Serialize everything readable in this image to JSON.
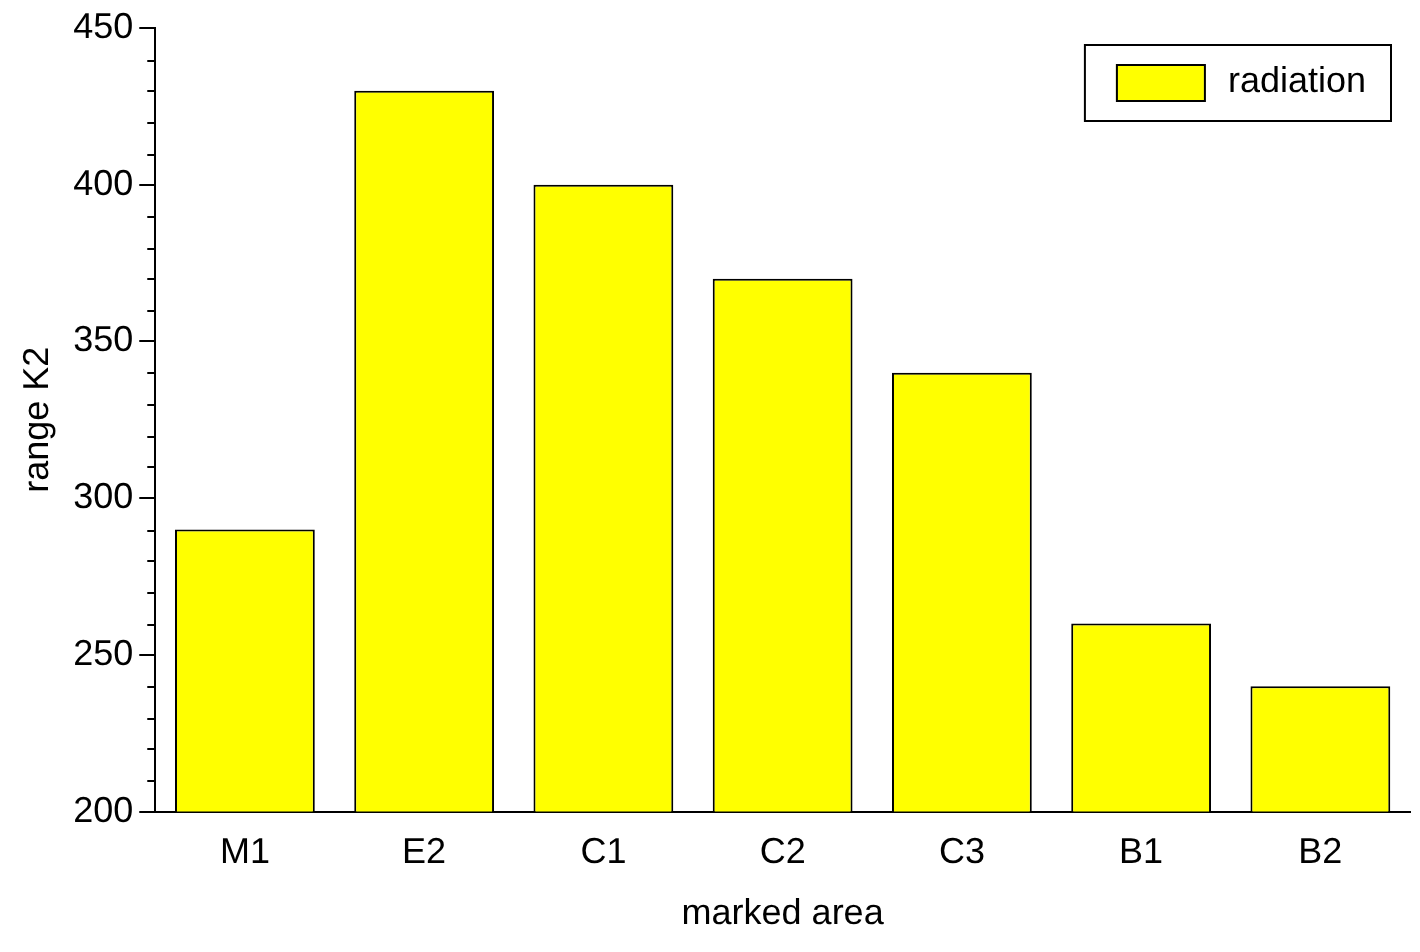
{
  "chart_data": {
    "type": "bar",
    "xlabel": "marked area",
    "ylabel": "range K2",
    "categories": [
      "M1",
      "E2",
      "C1",
      "C2",
      "C3",
      "B1",
      "B2"
    ],
    "series": [
      {
        "name": "radiation",
        "color": "#ffff00",
        "values": [
          290,
          430,
          400,
          370,
          340,
          260,
          240
        ]
      }
    ],
    "ylim": [
      200,
      450
    ],
    "yticks": [
      200,
      250,
      300,
      350,
      400,
      450
    ],
    "grid": false,
    "legend": "top right"
  }
}
